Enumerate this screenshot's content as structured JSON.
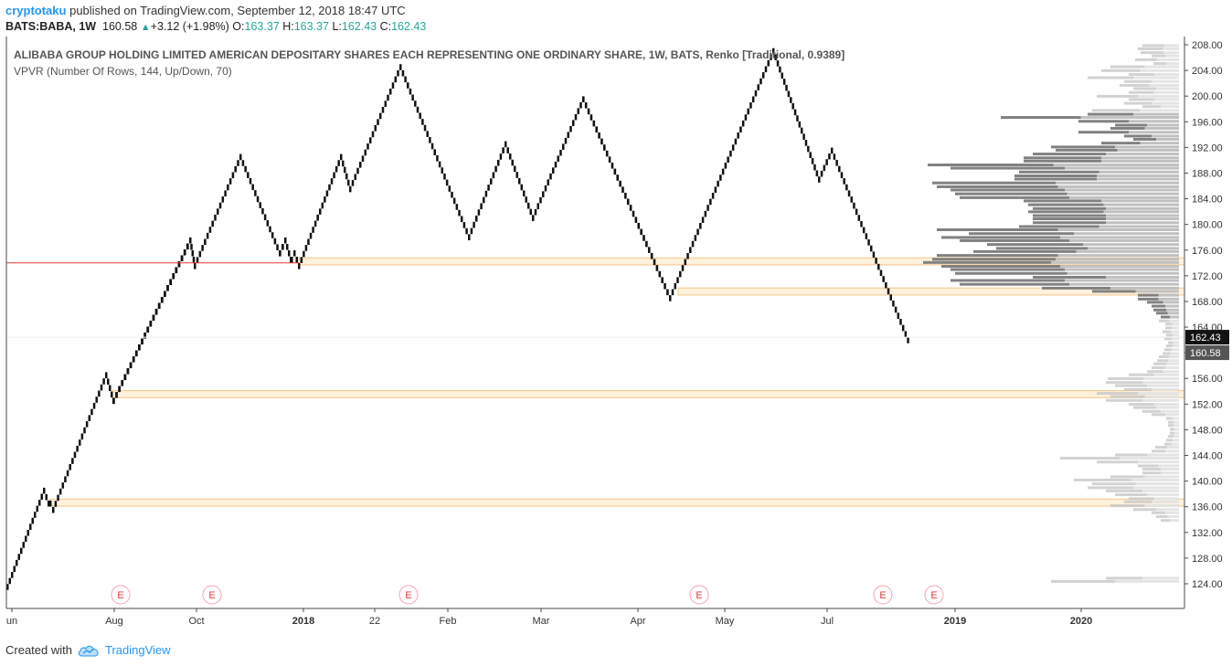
{
  "header": {
    "author": "cryptotaku",
    "published": "published on TradingView.com, September 12, 2018 18:47 UTC"
  },
  "quote": {
    "symbol": "BATS:BABA, 1W",
    "last": "160.58",
    "change": "+3.12 (+1.98%)",
    "open_label": "O:",
    "open": "163.37",
    "high_label": "H:",
    "high": "163.37",
    "low_label": "L:",
    "low": "162.43",
    "close_label": "C:",
    "close": "162.43",
    "up_color": "#26a69a"
  },
  "legend": {
    "title": "ALIBABA GROUP HOLDING LIMITED AMERICAN DEPOSITARY SHARES EACH REPRESENTING ONE ORDINARY SHARE, 1W, BATS, Renko [Traditional, 0.9389]",
    "indicator": "VPVR (Number Of Rows, 144, Up/Down, 70)"
  },
  "footer": {
    "created_with": "Created with",
    "brand": "TradingView"
  },
  "chart_data": {
    "type": "renko",
    "brick_size": 0.9389,
    "ylim": [
      122,
      209
    ],
    "y_ticks": [
      "208.00",
      "204.00",
      "200.00",
      "196.00",
      "192.00",
      "188.00",
      "184.00",
      "180.00",
      "176.00",
      "172.00",
      "168.00",
      "164.00",
      "160.00",
      "156.00",
      "152.00",
      "148.00",
      "144.00",
      "140.00",
      "136.00",
      "132.00",
      "128.00",
      "124.00"
    ],
    "x_labels": [
      {
        "label": "un",
        "bold": false
      },
      {
        "label": "Aug",
        "bold": false
      },
      {
        "label": "Oct",
        "bold": false
      },
      {
        "label": "2018",
        "bold": true
      },
      {
        "label": "22",
        "bold": false
      },
      {
        "label": "Feb",
        "bold": false
      },
      {
        "label": "Mar",
        "bold": false
      },
      {
        "label": "Apr",
        "bold": false
      },
      {
        "label": "May",
        "bold": false
      },
      {
        "label": "Jul",
        "bold": false
      },
      {
        "label": "2019",
        "bold": true
      },
      {
        "label": "2020",
        "bold": true
      }
    ],
    "price_path": [
      [
        0,
        123.5
      ],
      [
        40,
        138.5
      ],
      [
        45,
        136.5
      ],
      [
        50,
        135.5
      ],
      [
        108,
        156.5
      ],
      [
        116,
        152.5
      ],
      [
        200,
        177.5
      ],
      [
        205,
        173.5
      ],
      [
        255,
        190.5
      ],
      [
        298,
        175.5
      ],
      [
        304,
        177.5
      ],
      [
        310,
        174.5
      ],
      [
        314,
        175.5
      ],
      [
        319,
        173.5
      ],
      [
        365,
        190.5
      ],
      [
        375,
        185.5
      ],
      [
        430,
        204.5
      ],
      [
        505,
        178.0
      ],
      [
        545,
        192.5
      ],
      [
        575,
        181.0
      ],
      [
        630,
        199.5
      ],
      [
        725,
        168.5
      ],
      [
        838,
        207.0
      ],
      [
        888,
        187.0
      ],
      [
        902,
        191.5
      ],
      [
        988,
        161.0
      ]
    ],
    "last_price": "160.58",
    "last_close": "162.43",
    "red_line_price": 174.0,
    "zones": [
      {
        "from": 173.7,
        "to": 174.8,
        "start": 320
      },
      {
        "from": 169.0,
        "to": 170.1,
        "start": 735
      },
      {
        "from": 153.0,
        "to": 154.1,
        "start": 116
      },
      {
        "from": 136.1,
        "to": 137.2,
        "start": 47
      }
    ],
    "earnings_marker": "E",
    "earnings_count": 6,
    "vpvr_value_area": [
      165.0,
      197.5
    ],
    "vpvr_rows": [
      {
        "p": 207.8,
        "v": 40,
        "d": 0.6
      },
      {
        "p": 207.3,
        "v": 45,
        "d": 0.6
      },
      {
        "p": 206.7,
        "v": 42,
        "d": 0.6
      },
      {
        "p": 206.2,
        "v": 30,
        "d": 0.5
      },
      {
        "p": 205.6,
        "v": 48,
        "d": 0.5
      },
      {
        "p": 205.0,
        "v": 28,
        "d": 0.5
      },
      {
        "p": 204.5,
        "v": 75,
        "d": 0.5
      },
      {
        "p": 203.9,
        "v": 85,
        "d": 0.5
      },
      {
        "p": 203.3,
        "v": 55,
        "d": 0.5
      },
      {
        "p": 202.8,
        "v": 100,
        "d": 0.5
      },
      {
        "p": 202.2,
        "v": 60,
        "d": 0.5
      },
      {
        "p": 201.6,
        "v": 65,
        "d": 0.5
      },
      {
        "p": 201.1,
        "v": 50,
        "d": 0.5
      },
      {
        "p": 200.5,
        "v": 55,
        "d": 0.5
      },
      {
        "p": 199.9,
        "v": 90,
        "d": 0.5
      },
      {
        "p": 199.4,
        "v": 55,
        "d": 0.5
      },
      {
        "p": 198.8,
        "v": 60,
        "d": 0.5
      },
      {
        "p": 198.3,
        "v": 40,
        "d": 0.5
      },
      {
        "p": 197.7,
        "v": 95,
        "d": 0.55
      },
      {
        "p": 197.1,
        "v": 100,
        "d": 0.5
      },
      {
        "p": 196.6,
        "v": 195,
        "d": 0.45
      },
      {
        "p": 196.0,
        "v": 110,
        "d": 0.5
      },
      {
        "p": 195.4,
        "v": 70,
        "d": 0.5
      },
      {
        "p": 194.9,
        "v": 75,
        "d": 0.5
      },
      {
        "p": 194.3,
        "v": 110,
        "d": 0.5
      },
      {
        "p": 193.7,
        "v": 60,
        "d": 0.5
      },
      {
        "p": 193.2,
        "v": 50,
        "d": 0.5
      },
      {
        "p": 192.6,
        "v": 85,
        "d": 0.5
      },
      {
        "p": 192.0,
        "v": 140,
        "d": 0.5
      },
      {
        "p": 191.5,
        "v": 135,
        "d": 0.5
      },
      {
        "p": 190.9,
        "v": 160,
        "d": 0.5
      },
      {
        "p": 190.3,
        "v": 170,
        "d": 0.5
      },
      {
        "p": 189.8,
        "v": 170,
        "d": 0.5
      },
      {
        "p": 189.2,
        "v": 275,
        "d": 0.5
      },
      {
        "p": 188.7,
        "v": 250,
        "d": 0.5
      },
      {
        "p": 188.1,
        "v": 175,
        "d": 0.5
      },
      {
        "p": 187.5,
        "v": 180,
        "d": 0.5
      },
      {
        "p": 187.0,
        "v": 180,
        "d": 0.5
      },
      {
        "p": 186.4,
        "v": 270,
        "d": 0.5
      },
      {
        "p": 185.8,
        "v": 265,
        "d": 0.5
      },
      {
        "p": 185.3,
        "v": 250,
        "d": 0.5
      },
      {
        "p": 184.7,
        "v": 245,
        "d": 0.5
      },
      {
        "p": 184.1,
        "v": 240,
        "d": 0.5
      },
      {
        "p": 183.6,
        "v": 170,
        "d": 0.5
      },
      {
        "p": 183.0,
        "v": 165,
        "d": 0.5
      },
      {
        "p": 182.4,
        "v": 160,
        "d": 0.5
      },
      {
        "p": 181.9,
        "v": 165,
        "d": 0.5
      },
      {
        "p": 181.3,
        "v": 160,
        "d": 0.5
      },
      {
        "p": 180.8,
        "v": 160,
        "d": 0.5
      },
      {
        "p": 180.2,
        "v": 160,
        "d": 0.5
      },
      {
        "p": 179.6,
        "v": 175,
        "d": 0.5
      },
      {
        "p": 179.1,
        "v": 265,
        "d": 0.5
      },
      {
        "p": 178.5,
        "v": 230,
        "d": 0.5
      },
      {
        "p": 177.9,
        "v": 260,
        "d": 0.5
      },
      {
        "p": 177.4,
        "v": 240,
        "d": 0.5
      },
      {
        "p": 176.8,
        "v": 210,
        "d": 0.5
      },
      {
        "p": 176.2,
        "v": 200,
        "d": 0.5
      },
      {
        "p": 175.7,
        "v": 225,
        "d": 0.5
      },
      {
        "p": 175.1,
        "v": 265,
        "d": 0.5
      },
      {
        "p": 174.5,
        "v": 270,
        "d": 0.5
      },
      {
        "p": 174.0,
        "v": 280,
        "d": 0.5
      },
      {
        "p": 173.4,
        "v": 260,
        "d": 0.5
      },
      {
        "p": 172.9,
        "v": 250,
        "d": 0.5
      },
      {
        "p": 172.3,
        "v": 245,
        "d": 0.5
      },
      {
        "p": 171.7,
        "v": 160,
        "d": 0.5
      },
      {
        "p": 171.2,
        "v": 250,
        "d": 0.5
      },
      {
        "p": 170.6,
        "v": 240,
        "d": 0.5
      },
      {
        "p": 170.0,
        "v": 150,
        "d": 0.5
      },
      {
        "p": 169.5,
        "v": 95,
        "d": 0.5
      },
      {
        "p": 168.9,
        "v": 45,
        "d": 0.5
      },
      {
        "p": 168.3,
        "v": 45,
        "d": 0.5
      },
      {
        "p": 167.8,
        "v": 35,
        "d": 0.5
      },
      {
        "p": 167.2,
        "v": 30,
        "d": 0.5
      },
      {
        "p": 166.6,
        "v": 28,
        "d": 0.5
      },
      {
        "p": 166.1,
        "v": 25,
        "d": 0.5
      },
      {
        "p": 165.5,
        "v": 20,
        "d": 0.5
      },
      {
        "p": 164.9,
        "v": 22,
        "d": 0.5
      },
      {
        "p": 164.4,
        "v": 15,
        "d": 0.5
      },
      {
        "p": 163.8,
        "v": 15,
        "d": 0.5
      },
      {
        "p": 163.2,
        "v": 18,
        "d": 0.5
      },
      {
        "p": 162.7,
        "v": 14,
        "d": 0.5
      },
      {
        "p": 162.1,
        "v": 16,
        "d": 0.5
      },
      {
        "p": 161.5,
        "v": 12,
        "d": 0.5
      },
      {
        "p": 161.0,
        "v": 14,
        "d": 0.5
      },
      {
        "p": 160.4,
        "v": 16,
        "d": 0.5
      },
      {
        "p": 159.8,
        "v": 18,
        "d": 0.5
      },
      {
        "p": 159.3,
        "v": 22,
        "d": 0.5
      },
      {
        "p": 158.7,
        "v": 24,
        "d": 0.5
      },
      {
        "p": 158.2,
        "v": 28,
        "d": 0.5
      },
      {
        "p": 157.6,
        "v": 30,
        "d": 0.5
      },
      {
        "p": 157.0,
        "v": 35,
        "d": 0.5
      },
      {
        "p": 156.5,
        "v": 55,
        "d": 0.5
      },
      {
        "p": 155.9,
        "v": 78,
        "d": 0.5
      },
      {
        "p": 155.3,
        "v": 80,
        "d": 0.5
      },
      {
        "p": 154.8,
        "v": 70,
        "d": 0.5
      },
      {
        "p": 154.2,
        "v": 60,
        "d": 0.5
      },
      {
        "p": 153.6,
        "v": 90,
        "d": 0.5
      },
      {
        "p": 153.1,
        "v": 75,
        "d": 0.5
      },
      {
        "p": 152.5,
        "v": 80,
        "d": 0.5
      },
      {
        "p": 151.9,
        "v": 55,
        "d": 0.5
      },
      {
        "p": 151.4,
        "v": 50,
        "d": 0.5
      },
      {
        "p": 150.8,
        "v": 40,
        "d": 0.5
      },
      {
        "p": 150.3,
        "v": 30,
        "d": 0.5
      },
      {
        "p": 149.7,
        "v": 14,
        "d": 0.5
      },
      {
        "p": 149.1,
        "v": 12,
        "d": 0.5
      },
      {
        "p": 148.6,
        "v": 12,
        "d": 0.5
      },
      {
        "p": 148.0,
        "v": 10,
        "d": 0.5
      },
      {
        "p": 147.4,
        "v": 10,
        "d": 0.5
      },
      {
        "p": 146.9,
        "v": 12,
        "d": 0.5
      },
      {
        "p": 146.3,
        "v": 14,
        "d": 0.5
      },
      {
        "p": 145.7,
        "v": 16,
        "d": 0.5
      },
      {
        "p": 145.2,
        "v": 26,
        "d": 0.5
      },
      {
        "p": 144.6,
        "v": 30,
        "d": 0.5
      },
      {
        "p": 144.0,
        "v": 70,
        "d": 0.5
      },
      {
        "p": 143.5,
        "v": 130,
        "d": 0.5
      },
      {
        "p": 142.9,
        "v": 90,
        "d": 0.5
      },
      {
        "p": 142.3,
        "v": 45,
        "d": 0.5
      },
      {
        "p": 141.8,
        "v": 40,
        "d": 0.5
      },
      {
        "p": 141.2,
        "v": 40,
        "d": 0.5
      },
      {
        "p": 140.6,
        "v": 75,
        "d": 0.5
      },
      {
        "p": 140.1,
        "v": 115,
        "d": 0.55
      },
      {
        "p": 139.5,
        "v": 95,
        "d": 0.5
      },
      {
        "p": 138.9,
        "v": 100,
        "d": 0.5
      },
      {
        "p": 138.4,
        "v": 80,
        "d": 0.5
      },
      {
        "p": 137.8,
        "v": 70,
        "d": 0.5
      },
      {
        "p": 137.2,
        "v": 55,
        "d": 0.5
      },
      {
        "p": 136.7,
        "v": 60,
        "d": 0.5
      },
      {
        "p": 136.1,
        "v": 75,
        "d": 0.5
      },
      {
        "p": 135.5,
        "v": 50,
        "d": 0.5
      },
      {
        "p": 135.0,
        "v": 30,
        "d": 0.5
      },
      {
        "p": 134.4,
        "v": 25,
        "d": 0.5
      },
      {
        "p": 133.8,
        "v": 20,
        "d": 0.5
      },
      {
        "p": 124.8,
        "v": 80,
        "d": 0.5
      },
      {
        "p": 124.3,
        "v": 140,
        "d": 0.5
      }
    ]
  }
}
